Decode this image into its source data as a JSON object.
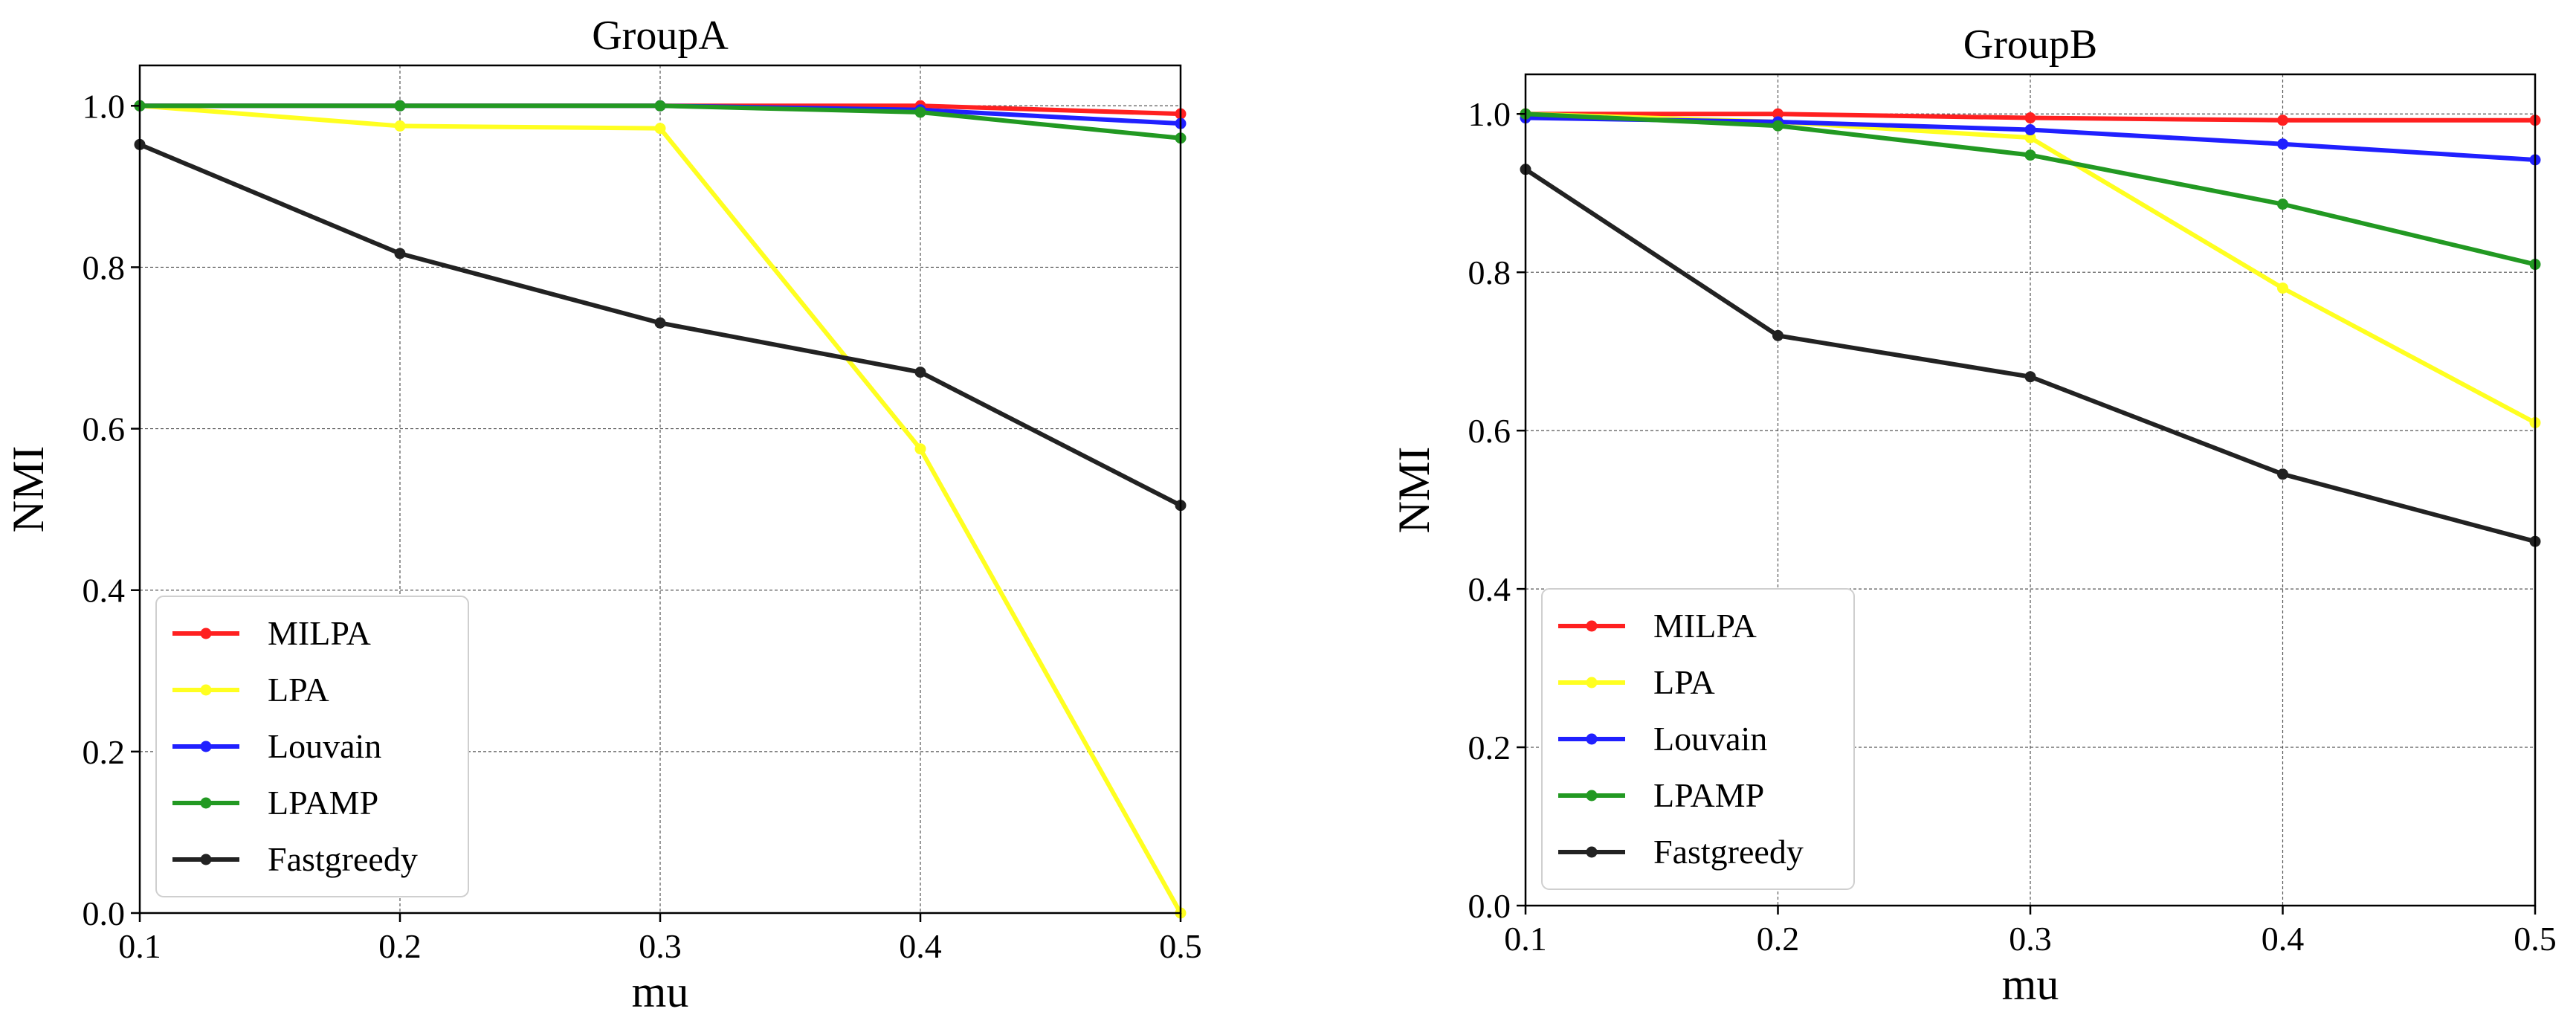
{
  "chart_data": [
    {
      "type": "line",
      "title": "GroupA",
      "xlabel": "mu",
      "ylabel": "NMI",
      "x": [
        0.1,
        0.2,
        0.3,
        0.4,
        0.5
      ],
      "xlim": [
        0.1,
        0.5
      ],
      "ylim": [
        0.0,
        1.05
      ],
      "xticks": [
        "0.1",
        "0.2",
        "0.3",
        "0.4",
        "0.5"
      ],
      "yticks": [
        "0.0",
        "0.2",
        "0.4",
        "0.6",
        "0.8",
        "1.0"
      ],
      "grid": true,
      "legend_position": "lower-left",
      "series": [
        {
          "name": "MILPA",
          "color": "#ff2020",
          "values": [
            1.0,
            1.0,
            1.0,
            1.0,
            0.99
          ]
        },
        {
          "name": "LPA",
          "color": "#ffff20",
          "values": [
            1.0,
            0.975,
            0.972,
            0.575,
            0.0
          ]
        },
        {
          "name": "Louvain",
          "color": "#2020ff",
          "values": [
            1.0,
            1.0,
            1.0,
            0.995,
            0.978
          ]
        },
        {
          "name": "LPAMP",
          "color": "#229922",
          "values": [
            1.0,
            1.0,
            1.0,
            0.992,
            0.96
          ]
        },
        {
          "name": "Fastgreedy",
          "color": "#222222",
          "values": [
            0.952,
            0.817,
            0.731,
            0.67,
            0.505
          ]
        }
      ]
    },
    {
      "type": "line",
      "title": "GroupB",
      "xlabel": "mu",
      "ylabel": "NMI",
      "x": [
        0.1,
        0.2,
        0.3,
        0.4,
        0.5
      ],
      "xlim": [
        0.1,
        0.5
      ],
      "ylim": [
        0.0,
        1.05
      ],
      "xticks": [
        "0.1",
        "0.2",
        "0.3",
        "0.4",
        "0.5"
      ],
      "yticks": [
        "0.0",
        "0.2",
        "0.4",
        "0.6",
        "0.8",
        "1.0"
      ],
      "grid": true,
      "legend_position": "lower-left",
      "series": [
        {
          "name": "MILPA",
          "color": "#ff2020",
          "values": [
            1.0,
            1.0,
            0.995,
            0.992,
            0.992
          ]
        },
        {
          "name": "LPA",
          "color": "#ffff20",
          "values": [
            1.0,
            0.99,
            0.97,
            0.78,
            0.61
          ]
        },
        {
          "name": "Louvain",
          "color": "#2020ff",
          "values": [
            0.995,
            0.99,
            0.98,
            0.962,
            0.942
          ]
        },
        {
          "name": "LPAMP",
          "color": "#229922",
          "values": [
            1.0,
            0.985,
            0.948,
            0.886,
            0.81
          ]
        },
        {
          "name": "Fastgreedy",
          "color": "#222222",
          "values": [
            0.93,
            0.72,
            0.668,
            0.545,
            0.46
          ]
        }
      ]
    }
  ]
}
